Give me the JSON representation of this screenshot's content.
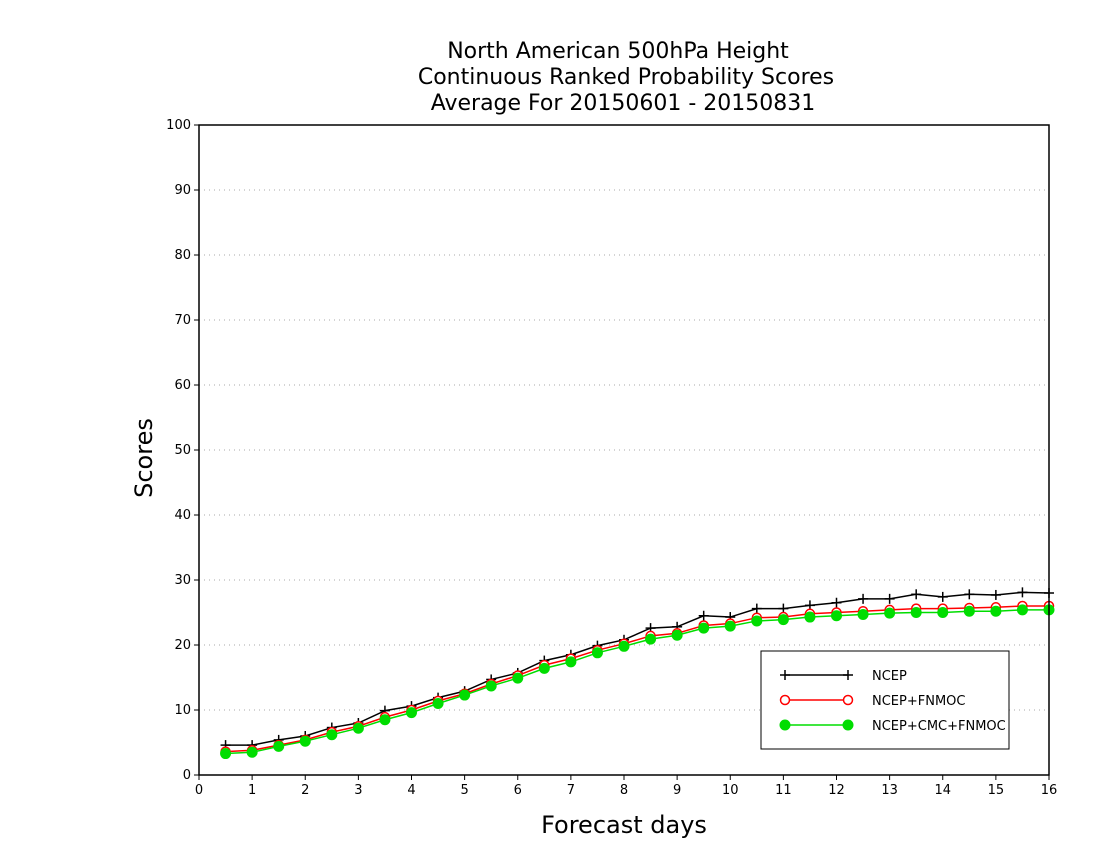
{
  "colors": {
    "background": "#ffffff",
    "axis": "#000000",
    "grid": "#aaaaaa"
  },
  "chart_data": {
    "type": "line",
    "title": [
      "North American 500hPa Height",
      "Continuous Ranked Probability Scores",
      "Average For 20150601 - 20150831"
    ],
    "xlabel": "Forecast days",
    "ylabel": "Scores",
    "xlim": [
      0,
      16
    ],
    "ylim": [
      0,
      100
    ],
    "xticks": [
      0,
      1,
      2,
      3,
      4,
      5,
      6,
      7,
      8,
      9,
      10,
      11,
      12,
      13,
      14,
      15,
      16
    ],
    "yticks": [
      0,
      10,
      20,
      30,
      40,
      50,
      60,
      70,
      80,
      90,
      100
    ],
    "grid": "horizontal dotted",
    "legend_position": "bottom-right",
    "x": [
      0.5,
      1,
      1.5,
      2,
      2.5,
      3,
      3.5,
      4,
      4.5,
      5,
      5.5,
      6,
      6.5,
      7,
      7.5,
      8,
      8.5,
      9,
      9.5,
      10,
      10.5,
      11,
      11.5,
      12,
      12.5,
      13,
      13.5,
      14,
      14.5,
      15,
      15.5,
      16
    ],
    "series": [
      {
        "name": "NCEP",
        "color": "#000000",
        "marker": "plus",
        "values": [
          4.6,
          4.6,
          5.4,
          6.0,
          7.3,
          8.0,
          9.9,
          10.6,
          11.9,
          12.9,
          14.7,
          15.7,
          17.6,
          18.5,
          19.9,
          20.8,
          22.6,
          22.8,
          24.5,
          24.3,
          25.6,
          25.6,
          26.1,
          26.5,
          27.1,
          27.1,
          27.8,
          27.4,
          27.8,
          27.7,
          28.1,
          28.0
        ]
      },
      {
        "name": "NCEP+FNMOC",
        "color": "#ff0000",
        "marker": "open-circle",
        "values": [
          3.6,
          3.8,
          4.6,
          5.4,
          6.6,
          7.5,
          8.9,
          10.0,
          11.4,
          12.5,
          14.0,
          15.3,
          16.9,
          17.9,
          19.2,
          20.2,
          21.4,
          21.8,
          23.0,
          23.3,
          24.2,
          24.3,
          24.8,
          25.0,
          25.2,
          25.4,
          25.6,
          25.6,
          25.7,
          25.8,
          26.0,
          26.0
        ]
      },
      {
        "name": "NCEP+CMC+FNMOC",
        "color": "#00dd00",
        "marker": "filled-circle",
        "values": [
          3.3,
          3.5,
          4.4,
          5.2,
          6.2,
          7.2,
          8.5,
          9.6,
          11.0,
          12.3,
          13.7,
          14.9,
          16.4,
          17.4,
          18.8,
          19.8,
          20.9,
          21.5,
          22.6,
          22.9,
          23.7,
          23.9,
          24.3,
          24.5,
          24.7,
          24.9,
          25.0,
          25.0,
          25.2,
          25.2,
          25.4,
          25.4
        ]
      }
    ]
  }
}
